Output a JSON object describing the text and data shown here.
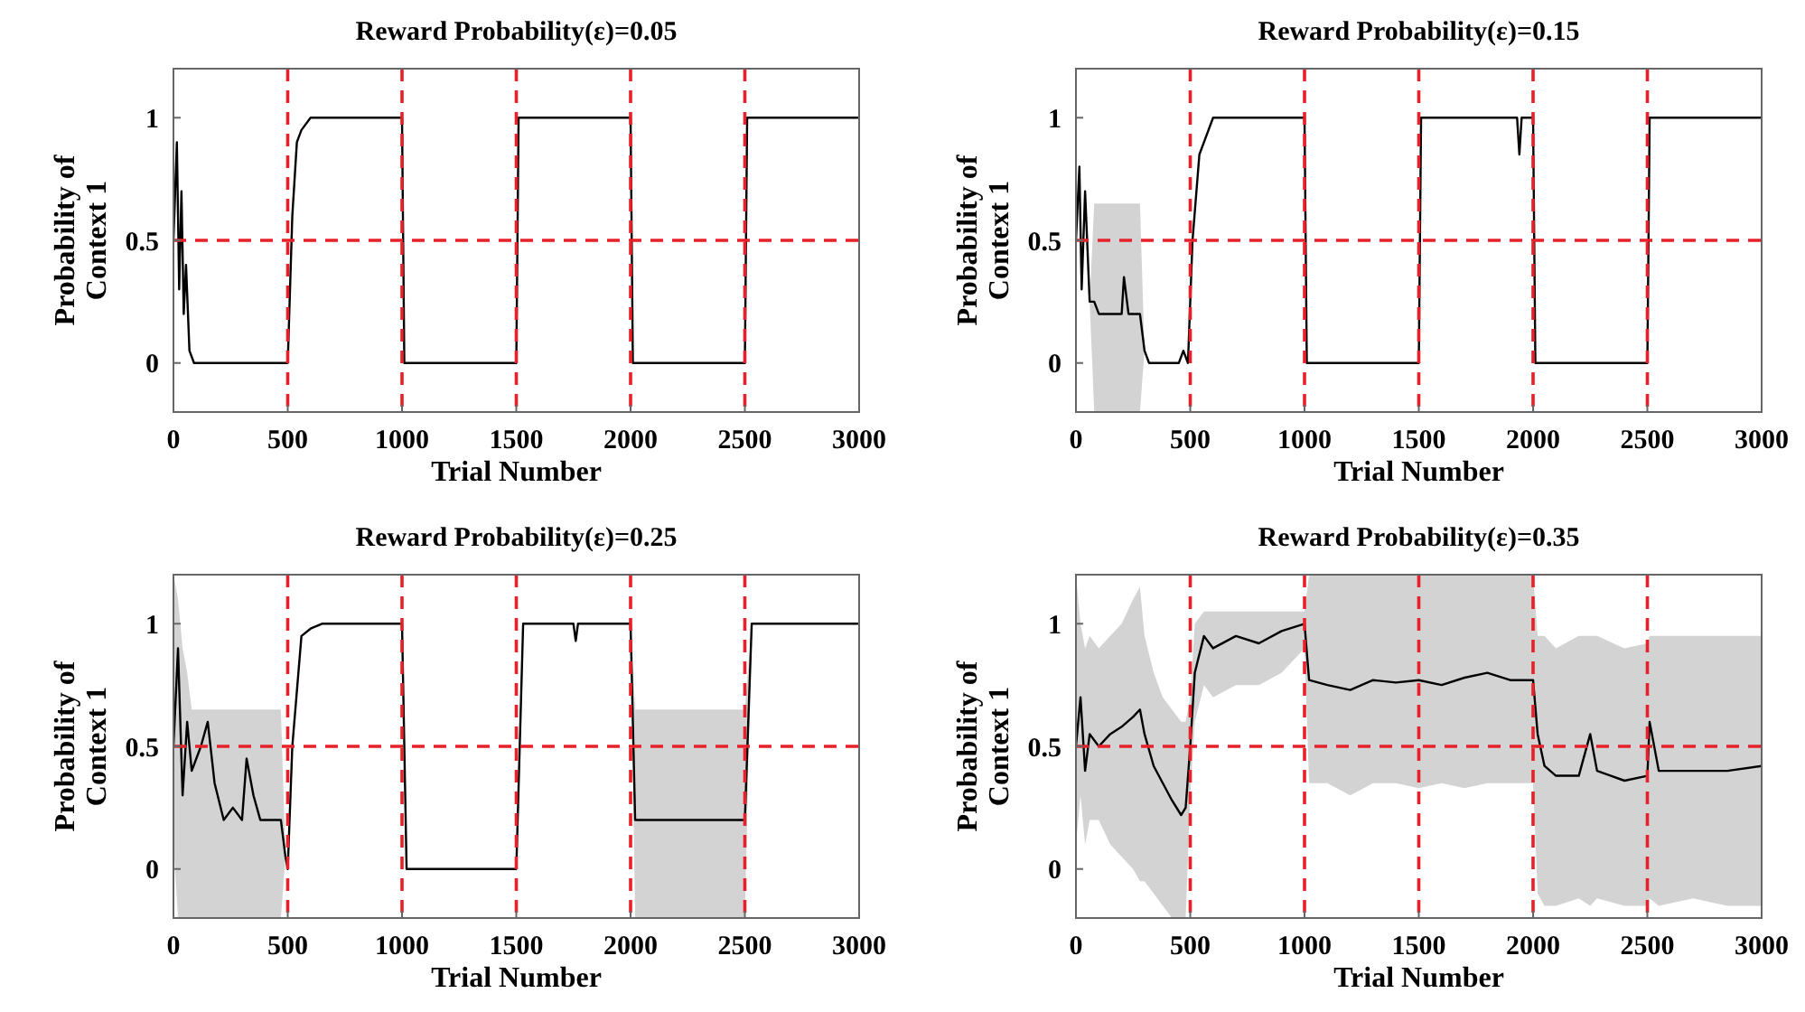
{
  "chart_data": [
    {
      "type": "line",
      "title": "Reward Probability(ε)=0.05",
      "xlabel": "Trial Number",
      "ylabel": "Probability of Context 1",
      "xlim": [
        0,
        3000
      ],
      "ylim": [
        -0.2,
        1.2
      ],
      "xticks": [
        0,
        500,
        1000,
        1500,
        2000,
        2500,
        3000
      ],
      "yticks": [
        0,
        0.5,
        1
      ],
      "grid": false,
      "ref_lines": [
        {
          "axis": "y",
          "value": 0.5,
          "color": "#e8202a",
          "line_style": "dashed"
        },
        {
          "axis": "x",
          "value": 500,
          "color": "#e8202a",
          "line_style": "dashed"
        },
        {
          "axis": "x",
          "value": 1000,
          "color": "#e8202a",
          "line_style": "dashed"
        },
        {
          "axis": "x",
          "value": 1500,
          "color": "#e8202a",
          "line_style": "dashed"
        },
        {
          "axis": "x",
          "value": 2000,
          "color": "#e8202a",
          "line_style": "dashed"
        },
        {
          "axis": "x",
          "value": 2500,
          "color": "#e8202a",
          "line_style": "dashed"
        }
      ],
      "series": [
        {
          "color": "#000000",
          "x": [
            0,
            15,
            25,
            35,
            45,
            55,
            70,
            90,
            500,
            520,
            540,
            560,
            600,
            1000,
            1010,
            1500,
            1510,
            2000,
            2010,
            2500,
            2510,
            3000
          ],
          "values": [
            0.5,
            0.9,
            0.3,
            0.7,
            0.2,
            0.4,
            0.05,
            0,
            0,
            0.6,
            0.9,
            0.95,
            1,
            1,
            0,
            0,
            1,
            1,
            0,
            0,
            1,
            1
          ]
        }
      ]
    },
    {
      "type": "line",
      "title": "Reward Probability(ε)=0.15",
      "xlabel": "Trial Number",
      "ylabel": "Probability of Context 1",
      "xlim": [
        0,
        3000
      ],
      "ylim": [
        -0.2,
        1.2
      ],
      "xticks": [
        0,
        500,
        1000,
        1500,
        2000,
        2500,
        3000
      ],
      "yticks": [
        0,
        0.5,
        1
      ],
      "grid": false,
      "ref_lines": [
        {
          "axis": "y",
          "value": 0.5,
          "color": "#e8202a",
          "line_style": "dashed"
        },
        {
          "axis": "x",
          "value": 500,
          "color": "#e8202a",
          "line_style": "dashed"
        },
        {
          "axis": "x",
          "value": 1000,
          "color": "#e8202a",
          "line_style": "dashed"
        },
        {
          "axis": "x",
          "value": 1500,
          "color": "#e8202a",
          "line_style": "dashed"
        },
        {
          "axis": "x",
          "value": 2000,
          "color": "#e8202a",
          "line_style": "dashed"
        },
        {
          "axis": "x",
          "value": 2500,
          "color": "#e8202a",
          "line_style": "dashed"
        }
      ],
      "series": [
        {
          "color": "#000000",
          "x": [
            0,
            15,
            25,
            40,
            60,
            80,
            100,
            200,
            210,
            230,
            280,
            300,
            320,
            450,
            470,
            490,
            510,
            540,
            580,
            600,
            1000,
            1010,
            1500,
            1510,
            1930,
            1940,
            1950,
            2000,
            2010,
            2500,
            2510,
            3000
          ],
          "values": [
            0.5,
            0.8,
            0.3,
            0.7,
            0.25,
            0.25,
            0.2,
            0.2,
            0.35,
            0.2,
            0.2,
            0.05,
            0,
            0,
            0.05,
            0,
            0.5,
            0.85,
            0.95,
            1,
            1,
            0,
            0,
            1,
            1,
            0.85,
            1,
            1,
            0,
            0,
            1,
            1
          ],
          "upper": [
            0.5,
            0.8,
            0.3,
            0.7,
            0.25,
            0.65,
            0.65,
            0.65,
            0.65,
            0.65,
            0.65,
            0.05,
            0,
            0,
            0.05,
            0,
            0.5,
            0.85,
            0.95,
            1,
            1,
            0,
            0,
            1,
            1,
            0.85,
            1,
            1,
            0,
            0,
            1,
            1
          ],
          "lower": [
            0.5,
            0.8,
            0.3,
            0.7,
            0.25,
            -0.2,
            -0.2,
            -0.2,
            -0.2,
            -0.2,
            -0.2,
            0.05,
            0,
            0,
            0.05,
            0,
            0.5,
            0.85,
            0.95,
            1,
            1,
            0,
            0,
            1,
            1,
            0.85,
            1,
            1,
            0,
            0,
            1,
            1
          ]
        }
      ]
    },
    {
      "type": "line",
      "title": "Reward Probability(ε)=0.25",
      "xlabel": "Trial Number",
      "ylabel": "Probability of Context 1",
      "xlim": [
        0,
        3000
      ],
      "ylim": [
        -0.2,
        1.2
      ],
      "xticks": [
        0,
        500,
        1000,
        1500,
        2000,
        2500,
        3000
      ],
      "yticks": [
        0,
        0.5,
        1
      ],
      "grid": false,
      "ref_lines": [
        {
          "axis": "y",
          "value": 0.5,
          "color": "#e8202a",
          "line_style": "dashed"
        },
        {
          "axis": "x",
          "value": 500,
          "color": "#e8202a",
          "line_style": "dashed"
        },
        {
          "axis": "x",
          "value": 1000,
          "color": "#e8202a",
          "line_style": "dashed"
        },
        {
          "axis": "x",
          "value": 1500,
          "color": "#e8202a",
          "line_style": "dashed"
        },
        {
          "axis": "x",
          "value": 2000,
          "color": "#e8202a",
          "line_style": "dashed"
        },
        {
          "axis": "x",
          "value": 2500,
          "color": "#e8202a",
          "line_style": "dashed"
        }
      ],
      "series": [
        {
          "color": "#000000",
          "x": [
            0,
            20,
            40,
            60,
            80,
            120,
            150,
            180,
            220,
            260,
            300,
            320,
            350,
            380,
            470,
            490,
            500,
            520,
            560,
            600,
            650,
            1000,
            1020,
            1500,
            1530,
            1750,
            1760,
            1770,
            2000,
            2020,
            2500,
            2530,
            3000
          ],
          "values": [
            0.5,
            0.9,
            0.3,
            0.6,
            0.4,
            0.5,
            0.6,
            0.35,
            0.2,
            0.25,
            0.2,
            0.45,
            0.3,
            0.2,
            0.2,
            0.05,
            0,
            0.5,
            0.95,
            0.98,
            1,
            1,
            0,
            0,
            1,
            1,
            0.93,
            1,
            1,
            0.2,
            0.2,
            1,
            1
          ],
          "upper": [
            1.2,
            1.1,
            0.9,
            0.8,
            0.65,
            0.65,
            0.65,
            0.65,
            0.65,
            0.65,
            0.65,
            0.65,
            0.65,
            0.65,
            0.65,
            0.05,
            0,
            0.5,
            0.95,
            0.98,
            1,
            1,
            0,
            0,
            1,
            1,
            0.93,
            1,
            1,
            0.65,
            0.65,
            1,
            1
          ],
          "lower": [
            0.1,
            -0.2,
            -0.2,
            -0.2,
            -0.2,
            -0.2,
            -0.2,
            -0.2,
            -0.2,
            -0.2,
            -0.2,
            -0.2,
            -0.2,
            -0.2,
            -0.2,
            0.05,
            0,
            0.5,
            0.95,
            0.98,
            1,
            1,
            0,
            0,
            1,
            1,
            0.93,
            1,
            1,
            -0.2,
            -0.2,
            1,
            1
          ]
        }
      ]
    },
    {
      "type": "line",
      "title": "Reward Probability(ε)=0.35",
      "xlabel": "Trial Number",
      "ylabel": "Probability of Context 1",
      "xlim": [
        0,
        3000
      ],
      "ylim": [
        -0.2,
        1.2
      ],
      "xticks": [
        0,
        500,
        1000,
        1500,
        2000,
        2500,
        3000
      ],
      "yticks": [
        0,
        0.5,
        1
      ],
      "grid": false,
      "ref_lines": [
        {
          "axis": "y",
          "value": 0.5,
          "color": "#e8202a",
          "line_style": "dashed"
        },
        {
          "axis": "x",
          "value": 500,
          "color": "#e8202a",
          "line_style": "dashed"
        },
        {
          "axis": "x",
          "value": 1000,
          "color": "#e8202a",
          "line_style": "dashed"
        },
        {
          "axis": "x",
          "value": 1500,
          "color": "#e8202a",
          "line_style": "dashed"
        },
        {
          "axis": "x",
          "value": 2000,
          "color": "#e8202a",
          "line_style": "dashed"
        },
        {
          "axis": "x",
          "value": 2500,
          "color": "#e8202a",
          "line_style": "dashed"
        }
      ],
      "series": [
        {
          "color": "#000000",
          "x": [
            0,
            20,
            40,
            60,
            100,
            150,
            200,
            250,
            280,
            300,
            340,
            380,
            420,
            460,
            480,
            500,
            520,
            560,
            600,
            700,
            800,
            900,
            1000,
            1020,
            1100,
            1200,
            1300,
            1400,
            1500,
            1600,
            1700,
            1800,
            1900,
            2000,
            2020,
            2050,
            2100,
            2200,
            2250,
            2280,
            2400,
            2500,
            2510,
            2550,
            2700,
            2850,
            3000
          ],
          "values": [
            0.5,
            0.7,
            0.4,
            0.55,
            0.5,
            0.55,
            0.58,
            0.62,
            0.65,
            0.55,
            0.42,
            0.35,
            0.28,
            0.22,
            0.25,
            0.5,
            0.8,
            0.95,
            0.9,
            0.95,
            0.92,
            0.97,
            1,
            0.77,
            0.75,
            0.73,
            0.77,
            0.76,
            0.77,
            0.75,
            0.78,
            0.8,
            0.77,
            0.77,
            0.55,
            0.42,
            0.38,
            0.38,
            0.55,
            0.4,
            0.36,
            0.38,
            0.6,
            0.4,
            0.4,
            0.4,
            0.42
          ],
          "upper": [
            1.2,
            1.0,
            0.9,
            0.95,
            0.9,
            0.95,
            1.0,
            1.1,
            1.15,
            0.95,
            0.8,
            0.7,
            0.65,
            0.6,
            0.6,
            0.7,
            1.0,
            1.05,
            1.05,
            1.05,
            1.05,
            1.05,
            1.05,
            1.2,
            1.2,
            1.2,
            1.2,
            1.2,
            1.2,
            1.2,
            1.2,
            1.2,
            1.2,
            1.2,
            0.95,
            0.95,
            0.9,
            0.95,
            0.95,
            0.95,
            0.9,
            0.92,
            0.95,
            0.95,
            0.95,
            0.95,
            0.95
          ],
          "lower": [
            0.1,
            0.3,
            0.1,
            0.2,
            0.2,
            0.1,
            0.05,
            0.0,
            -0.05,
            -0.05,
            -0.1,
            -0.15,
            -0.2,
            -0.2,
            -0.2,
            0.3,
            0.6,
            0.75,
            0.7,
            0.75,
            0.75,
            0.8,
            0.9,
            0.35,
            0.35,
            0.3,
            0.35,
            0.35,
            0.33,
            0.35,
            0.33,
            0.35,
            0.35,
            0.35,
            -0.1,
            -0.15,
            -0.15,
            -0.12,
            -0.15,
            -0.12,
            -0.15,
            -0.15,
            -0.12,
            -0.15,
            -0.12,
            -0.15,
            -0.15
          ]
        }
      ]
    }
  ]
}
